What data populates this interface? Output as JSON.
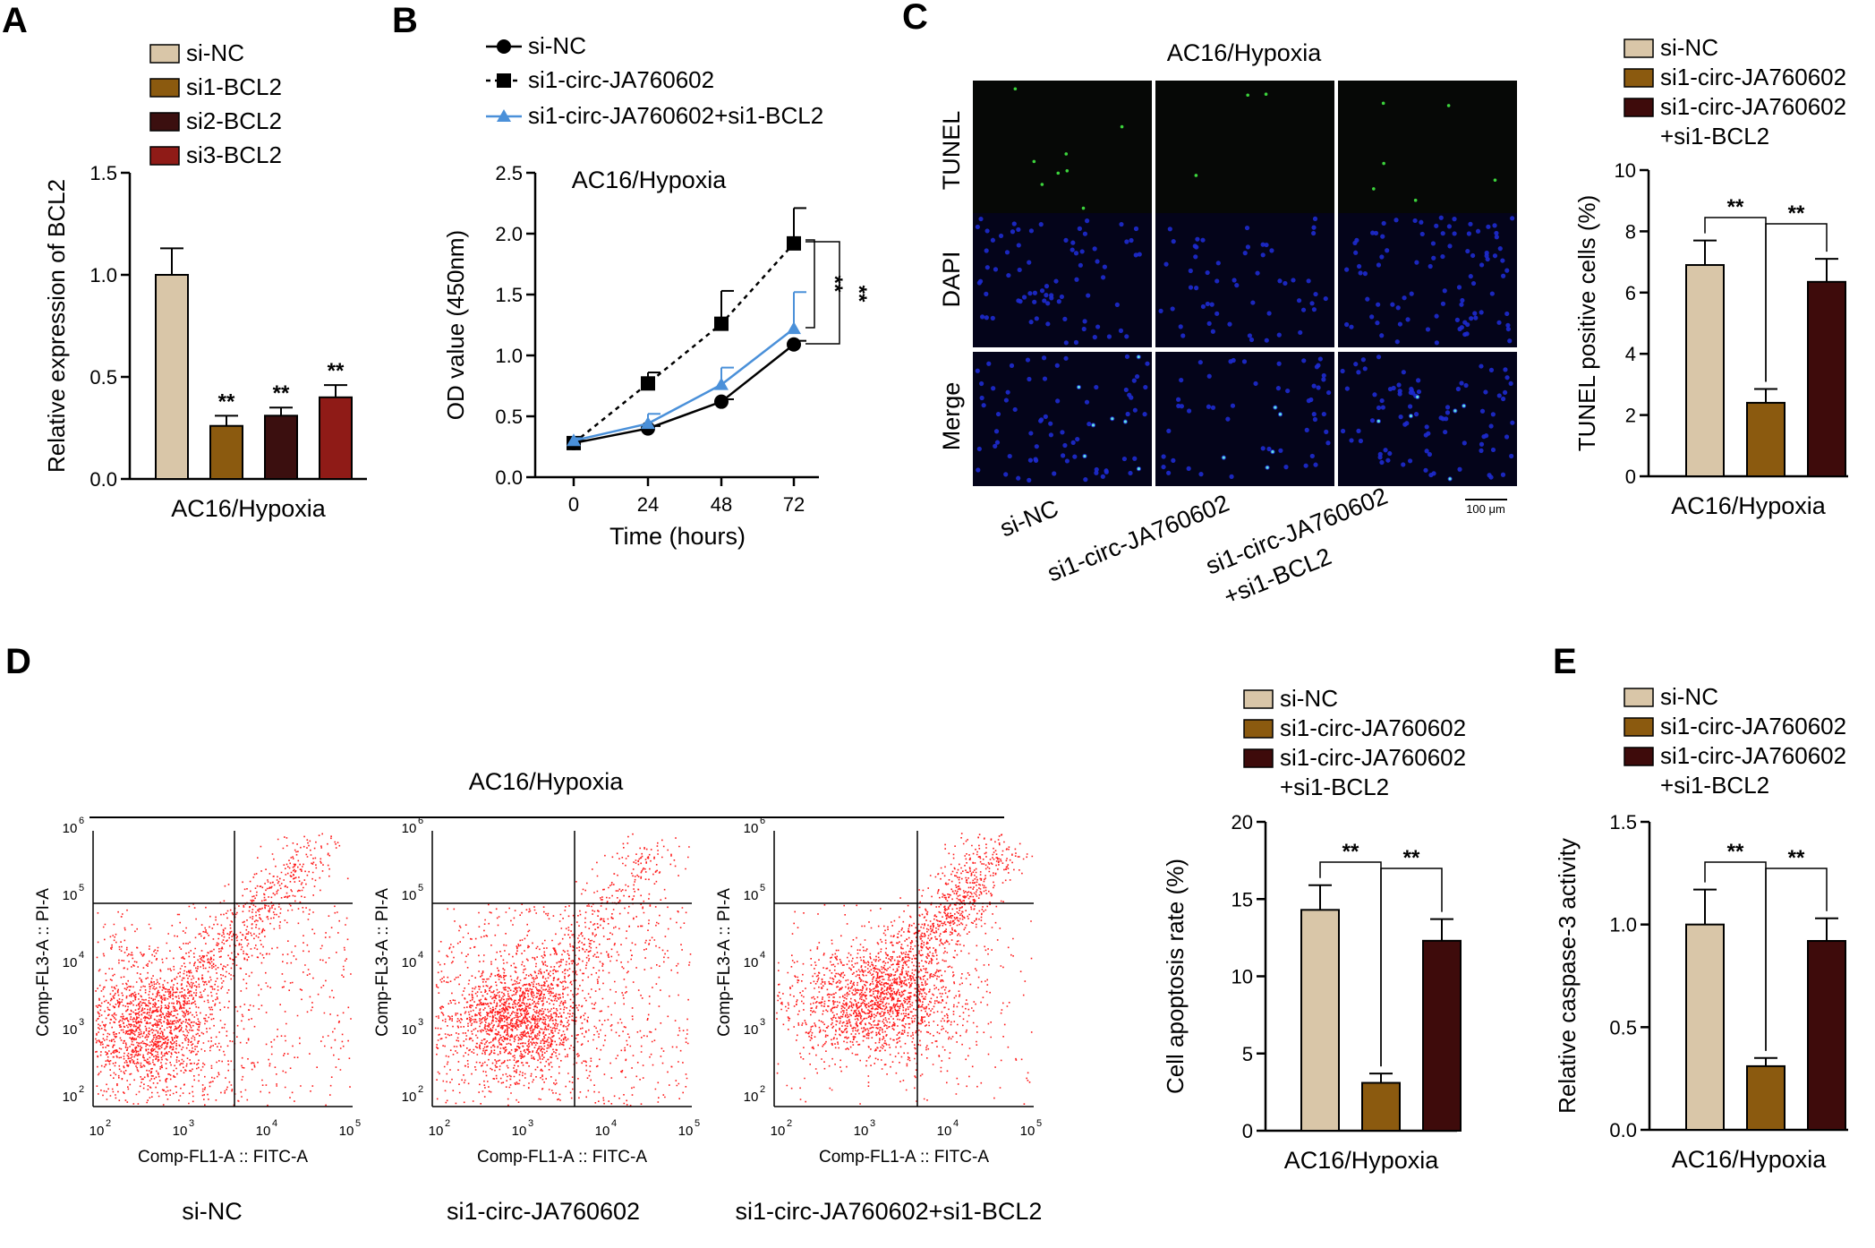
{
  "colors": {
    "si_nc": "#d9c6a8",
    "si1": "#8b5a0f",
    "si2": "#3b0f0f",
    "si3": "#8f1b17",
    "combo": "#3e0b0b",
    "line_blue": "#4a90d9",
    "dot_red": "#ff1a1a",
    "dapi": "#1e2bd0",
    "tunel": "#3cd43c"
  },
  "panel_letters": {
    "a": "A",
    "b": "B",
    "c": "C",
    "d": "D",
    "e": "E"
  },
  "flow": {
    "title": "AC16/Hypoxia",
    "ylabel": "Comp-FL3-A :: PI-A",
    "xlabel": "Comp-FL1-A :: FITC-A",
    "ticks": [
      "10",
      "10",
      "10",
      "10",
      "10"
    ],
    "tick_exps": [
      "2",
      "3",
      "4",
      "5",
      "6"
    ],
    "samples": [
      "si-NC",
      "si1-circ-JA760602",
      "si1-circ-JA760602+si1-BCL2"
    ]
  },
  "micro": {
    "title": "AC16/Hypoxia",
    "rows": [
      "TUNEL",
      "DAPI",
      "Merge"
    ],
    "cols": [
      "si-NC",
      "si1-circ-JA760602",
      "si1-circ-JA760602",
      "+si1-BCL2"
    ],
    "scale_bar": "100 μm"
  },
  "chart_data": [
    {
      "panel": "A",
      "type": "bar",
      "categories": [
        "si-NC",
        "si1-BCL2",
        "si2-BCL2",
        "si3-BCL2"
      ],
      "values": [
        1.0,
        0.26,
        0.31,
        0.4
      ],
      "errors": [
        0.13,
        0.05,
        0.04,
        0.06
      ],
      "significance": [
        "",
        "**",
        "**",
        "**"
      ],
      "legend": [
        "si-NC",
        "si1-BCL2",
        "si2-BCL2",
        "si3-BCL2"
      ],
      "xlabel": "AC16/Hypoxia",
      "ylabel": "Relative expression of BCL2",
      "ylim": [
        0,
        1.5
      ],
      "yticks": [
        "0.0",
        "0.5",
        "1.0",
        "1.5"
      ]
    },
    {
      "panel": "B",
      "type": "line",
      "title": "AC16/Hypoxia",
      "x": [
        0,
        24,
        48,
        72
      ],
      "xticks": [
        "0",
        "24",
        "48",
        "72"
      ],
      "series": [
        {
          "name": "si-NC",
          "values": [
            0.28,
            0.4,
            0.62,
            1.09
          ],
          "errors": [
            0.02,
            0.02,
            0.02,
            0.03
          ]
        },
        {
          "name": "si1-circ-JA760602",
          "values": [
            0.28,
            0.77,
            1.26,
            1.92
          ],
          "errors": [
            0.02,
            0.09,
            0.27,
            0.29
          ]
        },
        {
          "name": "si1-circ-JA760602+si1-BCL2",
          "values": [
            0.3,
            0.44,
            0.76,
            1.22
          ],
          "errors": [
            0.02,
            0.08,
            0.14,
            0.3
          ]
        }
      ],
      "significance": [
        "**",
        "**"
      ],
      "xlabel": "Time (hours)",
      "ylabel": "OD value (450nm)",
      "ylim": [
        0,
        2.5
      ],
      "yticks": [
        "0.0",
        "0.5",
        "1.0",
        "1.5",
        "2.0",
        "2.5"
      ]
    },
    {
      "panel": "C",
      "type": "bar",
      "categories": [
        "si-NC",
        "si1-circ-JA760602",
        "si1-circ-JA760602+si1-BCL2"
      ],
      "values": [
        6.9,
        2.4,
        6.35
      ],
      "errors": [
        0.8,
        0.45,
        0.75
      ],
      "significance": [
        "**",
        "**"
      ],
      "legend": [
        "si-NC",
        "si1-circ-JA760602",
        "si1-circ-JA760602",
        "+si1-BCL2"
      ],
      "xlabel": "AC16/Hypoxia",
      "ylabel": "TUNEL positive cells (%)",
      "ylim": [
        0,
        10
      ],
      "yticks": [
        "0",
        "2",
        "4",
        "6",
        "8",
        "10"
      ]
    },
    {
      "panel": "D",
      "type": "bar",
      "categories": [
        "si-NC",
        "si1-circ-JA760602",
        "si1-circ-JA760602+si1-BCL2"
      ],
      "values": [
        14.3,
        3.1,
        12.3
      ],
      "errors": [
        1.6,
        0.6,
        1.4
      ],
      "significance": [
        "**",
        "**"
      ],
      "legend": [
        "si-NC",
        "si1-circ-JA760602",
        "si1-circ-JA760602",
        "+si1-BCL2"
      ],
      "xlabel": "AC16/Hypoxia",
      "ylabel": "Cell apoptosis rate (%)",
      "ylim": [
        0,
        20
      ],
      "yticks": [
        "0",
        "5",
        "10",
        "15",
        "20"
      ]
    },
    {
      "panel": "E",
      "type": "bar",
      "categories": [
        "si-NC",
        "si1-circ-JA760602",
        "si1-circ-JA760602+si1-BCL2"
      ],
      "values": [
        1.0,
        0.31,
        0.92
      ],
      "errors": [
        0.17,
        0.04,
        0.11
      ],
      "significance": [
        "**",
        "**"
      ],
      "legend": [
        "si-NC",
        "si1-circ-JA760602",
        "si1-circ-JA760602",
        "+si1-BCL2"
      ],
      "xlabel": "AC16/Hypoxia",
      "ylabel": "Relative caspase-3 activity",
      "ylim": [
        0,
        1.5
      ],
      "yticks": [
        "0.0",
        "0.5",
        "1.0",
        "1.5"
      ]
    }
  ]
}
